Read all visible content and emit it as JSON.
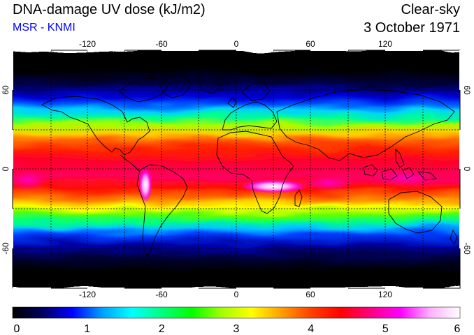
{
  "header": {
    "title": "DNA-damage UV dose (kJ/m2)",
    "subtitle": "MSR - KNMI",
    "condition": "Clear-sky",
    "date": "3 October 1971"
  },
  "map": {
    "longitude_ticks": [
      "-120",
      "-60",
      "0",
      "60",
      "120"
    ],
    "latitude_ticks": [
      "60",
      "0",
      "-60"
    ],
    "gridlines_deg": 30,
    "projection": "equirectangular",
    "features": [
      "coastlines",
      "dashed-graticule"
    ]
  },
  "colorbar": {
    "min": 0,
    "max": 6,
    "tick_labels": [
      "0",
      "1",
      "2",
      "3",
      "4",
      "5",
      "6"
    ],
    "colors": [
      "#000000",
      "#000060",
      "#0000ff",
      "#00a0ff",
      "#00ffff",
      "#00ff80",
      "#00ff00",
      "#a0ff00",
      "#ffff00",
      "#ffa000",
      "#ff4000",
      "#ff0000",
      "#ff0080",
      "#ff00ff",
      "#ffb0ff",
      "#ffffff"
    ]
  }
}
